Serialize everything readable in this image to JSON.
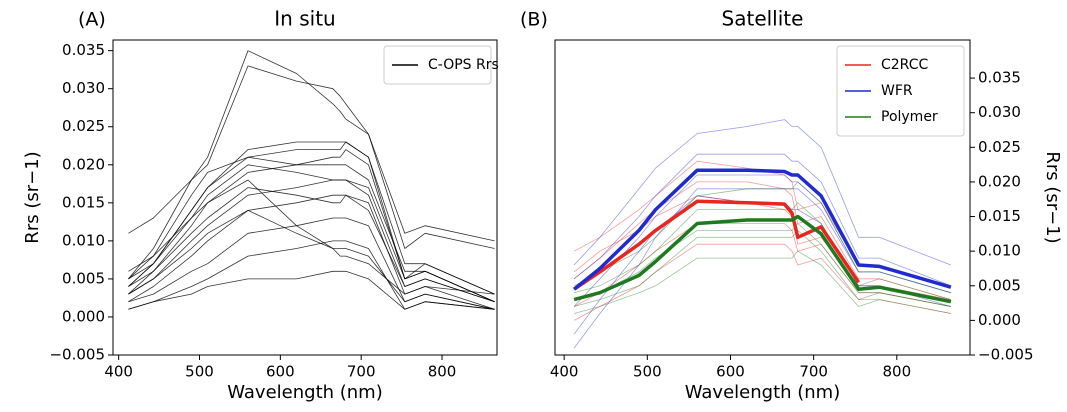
{
  "chart_data": [
    {
      "type": "line",
      "panel_label": "(A)",
      "title": "In situ",
      "xlabel": "Wavelength (nm)",
      "ylabel": "Rrs (sr−1)",
      "y_axis_side": "left",
      "legend": "upper right",
      "x": [
        412,
        443,
        490,
        510,
        560,
        620,
        665,
        674,
        681,
        709,
        754,
        779,
        865
      ],
      "xlim": [
        393,
        868
      ],
      "ylim": [
        -0.005,
        0.0364
      ],
      "xticks": [
        400,
        500,
        600,
        700,
        800
      ],
      "yticks": [
        {
          "value": -0.005,
          "label": "−0.005"
        },
        {
          "value": 0,
          "label": "0.000"
        },
        0.005,
        {
          "value": 0.01,
          "label": "0.010"
        },
        0.015,
        {
          "value": 0.02,
          "label": "0.020"
        },
        0.025,
        {
          "value": 0.03,
          "label": "0.030"
        },
        0.035
      ],
      "series": [
        {
          "name": "C-OPS Rrs",
          "color": "#000000",
          "spectra": [
            [
              0.011,
              0.013,
              0.018,
              0.021,
              0.035,
              0.032,
              0.028,
              0.027,
              0.026,
              0.024,
              0.011,
              0.012,
              0.01
            ],
            [
              0.005,
              0.009,
              0.018,
              0.02,
              0.033,
              0.031,
              0.03,
              0.029,
              0.028,
              0.024,
              0.009,
              0.011,
              0.009
            ],
            [
              0.004,
              0.007,
              0.014,
              0.017,
              0.022,
              0.023,
              0.023,
              0.023,
              0.023,
              0.021,
              0.007,
              0.007,
              0.003
            ],
            [
              0.005,
              0.008,
              0.016,
              0.019,
              0.021,
              0.02,
              0.02,
              0.02,
              0.02,
              0.018,
              0.006,
              0.006,
              0.002
            ],
            [
              0.003,
              0.006,
              0.012,
              0.015,
              0.019,
              0.02,
              0.021,
              0.021,
              0.022,
              0.02,
              0.005,
              0.006,
              0.002
            ],
            [
              0.003,
              0.005,
              0.01,
              0.012,
              0.016,
              0.017,
              0.018,
              0.018,
              0.018,
              0.016,
              0.004,
              0.005,
              0.002
            ],
            [
              0.002,
              0.004,
              0.008,
              0.01,
              0.014,
              0.015,
              0.016,
              0.016,
              0.016,
              0.015,
              0.003,
              0.004,
              0.001
            ],
            [
              0.002,
              0.003,
              0.006,
              0.007,
              0.011,
              0.012,
              0.013,
              0.013,
              0.013,
              0.012,
              0.002,
              0.003,
              0.001
            ],
            [
              0.001,
              0.002,
              0.004,
              0.005,
              0.008,
              0.009,
              0.01,
              0.01,
              0.01,
              0.009,
              0.001,
              0.002,
              0.001
            ],
            [
              0.006,
              0.008,
              0.013,
              0.015,
              0.018,
              0.012,
              0.009,
              0.008,
              0.008,
              0.007,
              0.003,
              0.004,
              0.003
            ],
            [
              0.004,
              0.006,
              0.011,
              0.013,
              0.017,
              0.016,
              0.015,
              0.015,
              0.016,
              0.014,
              0.004,
              0.005,
              0.002
            ],
            [
              0.003,
              0.005,
              0.009,
              0.011,
              0.014,
              0.011,
              0.009,
              0.009,
              0.009,
              0.008,
              0.002,
              0.003,
              0.001
            ],
            [
              0.005,
              0.007,
              0.014,
              0.017,
              0.021,
              0.022,
              0.022,
              0.022,
              0.023,
              0.021,
              0.005,
              0.007,
              0.003
            ],
            [
              0.001,
              0.002,
              0.003,
              0.004,
              0.005,
              0.005,
              0.006,
              0.006,
              0.006,
              0.005,
              0.001,
              0.002,
              0.001
            ],
            [
              0.004,
              0.007,
              0.013,
              0.016,
              0.02,
              0.019,
              0.018,
              0.018,
              0.018,
              0.017,
              0.005,
              0.006,
              0.002
            ]
          ]
        }
      ]
    },
    {
      "type": "line",
      "panel_label": "(B)",
      "title": "Satellite",
      "xlabel": "Wavelength (nm)",
      "ylabel": "Rrs (sr−1)",
      "y_axis_side": "right",
      "legend": "upper right",
      "x": [
        412,
        443,
        490,
        510,
        560,
        620,
        665,
        674,
        681,
        709,
        754,
        779,
        865
      ],
      "xlim": [
        389,
        888
      ],
      "ylim": [
        -0.005,
        0.0405
      ],
      "xticks": [
        400,
        500,
        600,
        700,
        800
      ],
      "yticks": [
        {
          "value": -0.005,
          "label": "−0.005"
        },
        {
          "value": 0,
          "label": "0.000"
        },
        0.005,
        {
          "value": 0.01,
          "label": "0.010"
        },
        0.015,
        {
          "value": 0.02,
          "label": "0.020"
        },
        0.025,
        {
          "value": 0.03,
          "label": "0.030"
        },
        0.035
      ],
      "series": [
        {
          "name": "C2RCC",
          "color": "#e8261e",
          "values": [
            0.0045,
            0.007,
            0.011,
            0.013,
            0.0172,
            0.017,
            0.0168,
            0.0155,
            0.012,
            0.0135,
            0.0055,
            null,
            null
          ],
          "spectra": [
            [
              0.01,
              0.012,
              0.016,
              0.018,
              0.023,
              0.022,
              0.021,
              0.02,
              0.016,
              0.017,
              0.008,
              0.008,
              0.005
            ],
            [
              0.006,
              0.009,
              0.014,
              0.016,
              0.02,
              0.02,
              0.019,
              0.018,
              0.014,
              0.015,
              0.006,
              0.006,
              0.003
            ],
            [
              0.002,
              0.004,
              0.008,
              0.01,
              0.014,
              0.014,
              0.014,
              0.013,
              0.01,
              0.011,
              0.004,
              0.004,
              0.002
            ],
            [
              0.0,
              0.002,
              0.005,
              0.007,
              0.011,
              0.011,
              0.011,
              0.01,
              0.008,
              0.009,
              0.003,
              0.003,
              0.001
            ],
            [
              0.007,
              0.01,
              0.013,
              0.015,
              0.018,
              0.017,
              0.016,
              0.015,
              0.011,
              0.012,
              0.005,
              0.005,
              0.003
            ]
          ]
        },
        {
          "name": "WFR",
          "color": "#1f2bd1",
          "values": [
            0.0045,
            0.0075,
            0.013,
            0.016,
            0.0217,
            0.0217,
            0.0215,
            0.021,
            0.021,
            0.018,
            0.008,
            0.0078,
            0.0048
          ],
          "spectra": [
            [
              0.008,
              0.012,
              0.019,
              0.022,
              0.027,
              0.028,
              0.029,
              0.028,
              0.028,
              0.025,
              0.012,
              0.012,
              0.008
            ],
            [
              -0.004,
              0.001,
              0.008,
              0.012,
              0.019,
              0.019,
              0.019,
              0.019,
              0.019,
              0.016,
              0.007,
              0.007,
              0.004
            ],
            [
              0.002,
              0.006,
              0.012,
              0.015,
              0.021,
              0.021,
              0.021,
              0.02,
              0.02,
              0.017,
              0.007,
              0.007,
              0.004
            ],
            [
              0.006,
              0.009,
              0.015,
              0.018,
              0.024,
              0.024,
              0.024,
              0.023,
              0.023,
              0.02,
              0.009,
              0.009,
              0.005
            ],
            [
              -0.002,
              0.003,
              0.01,
              0.013,
              0.018,
              0.017,
              0.017,
              0.016,
              0.016,
              0.014,
              0.005,
              0.005,
              0.002
            ]
          ]
        },
        {
          "name": "Polymer",
          "color": "#1e7a1e",
          "values": [
            0.003,
            0.004,
            0.0065,
            0.0085,
            0.014,
            0.0145,
            0.0145,
            0.0145,
            0.015,
            0.0125,
            0.0045,
            0.0048,
            0.0027
          ],
          "spectra": [
            [
              0.005,
              0.007,
              0.01,
              0.012,
              0.018,
              0.019,
              0.019,
              0.019,
              0.02,
              0.017,
              0.007,
              0.007,
              0.004
            ],
            [
              0.002,
              0.003,
              0.005,
              0.007,
              0.012,
              0.012,
              0.012,
              0.012,
              0.013,
              0.01,
              0.003,
              0.004,
              0.002
            ],
            [
              0.004,
              0.005,
              0.008,
              0.01,
              0.016,
              0.016,
              0.016,
              0.016,
              0.017,
              0.014,
              0.005,
              0.006,
              0.003
            ],
            [
              0.001,
              0.002,
              0.004,
              0.005,
              0.009,
              0.009,
              0.009,
              0.009,
              0.01,
              0.008,
              0.002,
              0.003,
              0.001
            ],
            [
              0.003,
              0.004,
              0.007,
              0.009,
              0.013,
              0.013,
              0.013,
              0.013,
              0.014,
              0.011,
              0.004,
              0.004,
              0.002
            ]
          ]
        }
      ]
    }
  ]
}
